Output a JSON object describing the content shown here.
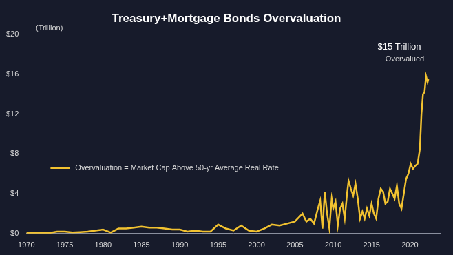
{
  "chart_data": {
    "type": "line",
    "title": "Treasury+Mortgage Bonds Overvaluation",
    "y_label": "(Trillion)",
    "annotation": [
      "$15 Trillion",
      "Overvalued"
    ],
    "x": [
      1970,
      1971,
      1972,
      1973,
      1974,
      1975,
      1976,
      1977,
      1978,
      1979,
      1980,
      1981,
      1982,
      1983,
      1984,
      1985,
      1986,
      1987,
      1988,
      1989,
      1990,
      1991,
      1992,
      1993,
      1994,
      1995,
      1996,
      1997,
      1998,
      1999,
      2000,
      2001,
      2002,
      2003,
      2004,
      2005,
      2006,
      2006.5,
      2007,
      2007.5,
      2008,
      2008.3,
      2008.6,
      2008.9,
      2009.2,
      2009.5,
      2009.8,
      2010,
      2010.3,
      2010.6,
      2010.9,
      2011.2,
      2011.5,
      2011.8,
      2012,
      2012.3,
      2012.6,
      2012.9,
      2013.2,
      2013.5,
      2013.8,
      2014.1,
      2014.4,
      2014.7,
      2015,
      2015.3,
      2015.6,
      2015.9,
      2016.2,
      2016.5,
      2016.8,
      2017.1,
      2017.4,
      2017.7,
      2018,
      2018.3,
      2018.6,
      2018.9,
      2019.2,
      2019.5,
      2019.8,
      2020.1,
      2020.4,
      2020.7,
      2021,
      2021.3,
      2021.5,
      2021.7,
      2021.9,
      2022.1,
      2022.3,
      2022.4
    ],
    "series": [
      {
        "name": "Overvaluation = Market Cap Above 50-yr Average Real Rate",
        "color": "#f2c230",
        "values": [
          0.05,
          0.05,
          0.05,
          0.05,
          0.2,
          0.2,
          0.1,
          0.15,
          0.2,
          0.3,
          0.4,
          0.1,
          0.5,
          0.5,
          0.6,
          0.7,
          0.6,
          0.6,
          0.5,
          0.4,
          0.4,
          0.2,
          0.3,
          0.2,
          0.2,
          0.9,
          0.5,
          0.3,
          0.8,
          0.3,
          0.2,
          0.5,
          0.9,
          0.8,
          1.0,
          1.2,
          2.0,
          1.2,
          1.5,
          1.0,
          2.5,
          3.3,
          0.5,
          4.2,
          2.0,
          0.5,
          3.5,
          2.5,
          3.2,
          0.8,
          2.5,
          3.0,
          1.5,
          4.0,
          5.3,
          4.5,
          3.8,
          5.0,
          3.5,
          1.5,
          2.2,
          1.5,
          2.5,
          1.8,
          3.0,
          2.0,
          1.5,
          3.5,
          4.5,
          4.2,
          3.0,
          3.2,
          4.5,
          4.0,
          3.5,
          4.8,
          3.0,
          2.5,
          4.0,
          5.5,
          6.0,
          7.0,
          6.5,
          6.8,
          7.0,
          8.5,
          12,
          14,
          14.2,
          15.8,
          15.2,
          15.5
        ]
      }
    ],
    "xlim": [
      1970,
      2024
    ],
    "xticks": [
      1970,
      1975,
      1980,
      1985,
      1990,
      1995,
      2000,
      2005,
      2010,
      2015,
      2020
    ],
    "ylim": [
      0,
      20
    ],
    "yticks": [
      {
        "value": 0,
        "label": "$0"
      },
      {
        "value": 4,
        "label": "$4"
      },
      {
        "value": 8,
        "label": "$8"
      },
      {
        "value": 12,
        "label": "$12"
      },
      {
        "value": 16,
        "label": "$16"
      },
      {
        "value": 20,
        "label": "$20"
      }
    ],
    "grid": false,
    "legend": "left"
  }
}
